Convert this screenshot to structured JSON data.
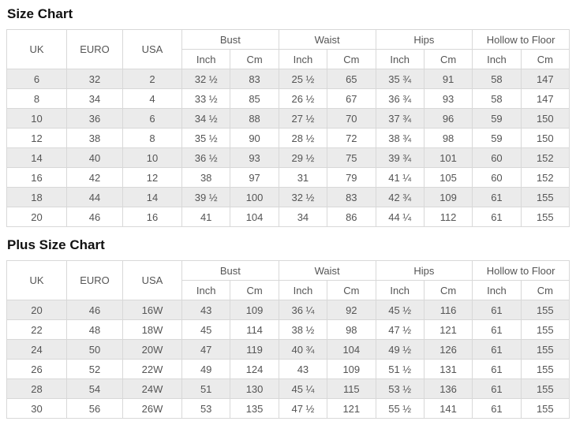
{
  "colors": {
    "stripe_bg": "#ebebeb",
    "border": "#d8d8d8",
    "cell_text": "#555555",
    "title_text": "#111111",
    "page_bg": "#ffffff"
  },
  "tables": [
    {
      "title": "Size Chart",
      "label_headers": [
        "UK",
        "EURO",
        "USA"
      ],
      "group_headers": [
        "Bust",
        "Waist",
        "Hips",
        "Hollow to Floor"
      ],
      "unit_headers": [
        "Inch",
        "Cm"
      ],
      "rows": [
        [
          "6",
          "32",
          "2",
          "32 ½",
          "83",
          "25 ½",
          "65",
          "35 ¾",
          "91",
          "58",
          "147"
        ],
        [
          "8",
          "34",
          "4",
          "33 ½",
          "85",
          "26 ½",
          "67",
          "36 ¾",
          "93",
          "58",
          "147"
        ],
        [
          "10",
          "36",
          "6",
          "34 ½",
          "88",
          "27 ½",
          "70",
          "37 ¾",
          "96",
          "59",
          "150"
        ],
        [
          "12",
          "38",
          "8",
          "35 ½",
          "90",
          "28 ½",
          "72",
          "38 ¾",
          "98",
          "59",
          "150"
        ],
        [
          "14",
          "40",
          "10",
          "36 ½",
          "93",
          "29 ½",
          "75",
          "39 ¾",
          "101",
          "60",
          "152"
        ],
        [
          "16",
          "42",
          "12",
          "38",
          "97",
          "31",
          "79",
          "41 ¼",
          "105",
          "60",
          "152"
        ],
        [
          "18",
          "44",
          "14",
          "39 ½",
          "100",
          "32 ½",
          "83",
          "42 ¾",
          "109",
          "61",
          "155"
        ],
        [
          "20",
          "46",
          "16",
          "41",
          "104",
          "34",
          "86",
          "44 ¼",
          "112",
          "61",
          "155"
        ]
      ]
    },
    {
      "title": "Plus Size Chart",
      "label_headers": [
        "UK",
        "EURO",
        "USA"
      ],
      "group_headers": [
        "Bust",
        "Waist",
        "Hips",
        "Hollow to Floor"
      ],
      "unit_headers": [
        "Inch",
        "Cm"
      ],
      "rows": [
        [
          "20",
          "46",
          "16W",
          "43",
          "109",
          "36 ¼",
          "92",
          "45 ½",
          "116",
          "61",
          "155"
        ],
        [
          "22",
          "48",
          "18W",
          "45",
          "114",
          "38 ½",
          "98",
          "47 ½",
          "121",
          "61",
          "155"
        ],
        [
          "24",
          "50",
          "20W",
          "47",
          "119",
          "40 ¾",
          "104",
          "49 ½",
          "126",
          "61",
          "155"
        ],
        [
          "26",
          "52",
          "22W",
          "49",
          "124",
          "43",
          "109",
          "51 ½",
          "131",
          "61",
          "155"
        ],
        [
          "28",
          "54",
          "24W",
          "51",
          "130",
          "45 ¼",
          "115",
          "53 ½",
          "136",
          "61",
          "155"
        ],
        [
          "30",
          "56",
          "26W",
          "53",
          "135",
          "47 ½",
          "121",
          "55 ½",
          "141",
          "61",
          "155"
        ]
      ]
    }
  ]
}
